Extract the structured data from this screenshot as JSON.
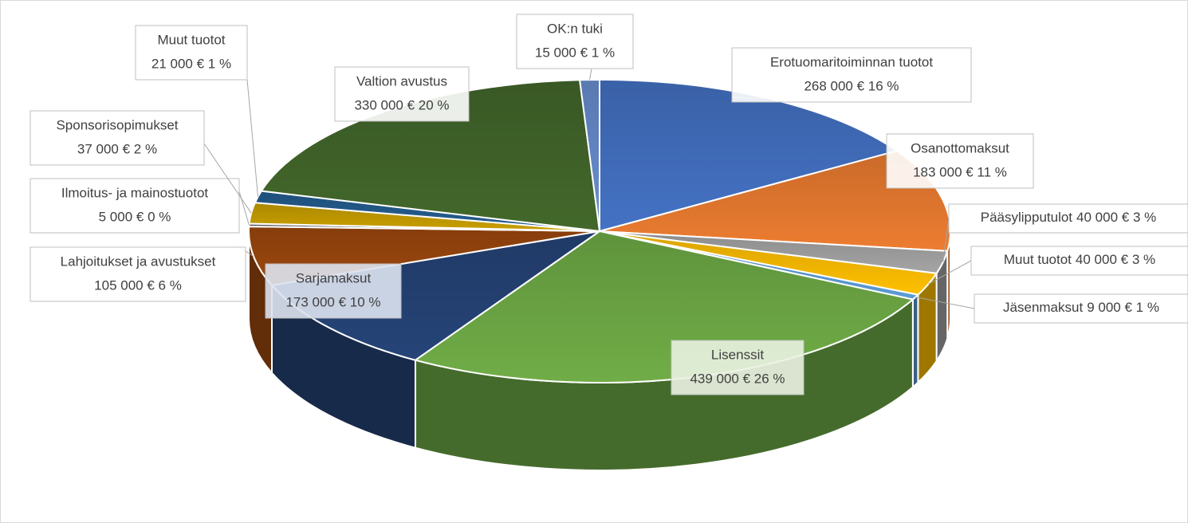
{
  "chart_data": {
    "type": "pie",
    "style": "3d",
    "categories": [
      "Erotuomaritoiminnan tuotot",
      "Osanottomaksut",
      "Pääsylipputulot",
      "Muut tuotot",
      "Jäsenmaksut",
      "Lisenssit",
      "Sarjamaksut",
      "Lahjoitukset ja avustukset",
      "Ilmoitus- ja mainostuotot",
      "Sponsorisopimukset",
      "Muut tuotot",
      "Valtion avustus",
      "OK:n tuki"
    ],
    "values": [
      268000,
      183000,
      40000,
      40000,
      9000,
      439000,
      173000,
      105000,
      5000,
      37000,
      21000,
      330000,
      15000
    ],
    "value_labels": [
      "268 000 € 16 %",
      "183 000 € 11 %",
      "40 000 € 3 %",
      "40 000 € 3 %",
      "9 000 € 1 %",
      "439 000 € 26 %",
      "173 000 € 10 %",
      "105 000 € 6 %",
      "5 000 € 0 %",
      "37 000 € 2 %",
      "21 000 € 1 %",
      "330 000 € 20 %",
      "15 000 € 1 %"
    ],
    "colors": [
      "#4472c4",
      "#ed7d31",
      "#a5a5a5",
      "#ffc000",
      "#5b9bd5",
      "#70ad47",
      "#264478",
      "#9e480e",
      "#636363",
      "#c9a000",
      "#255e91",
      "#43682b",
      "#698ed0"
    ]
  }
}
